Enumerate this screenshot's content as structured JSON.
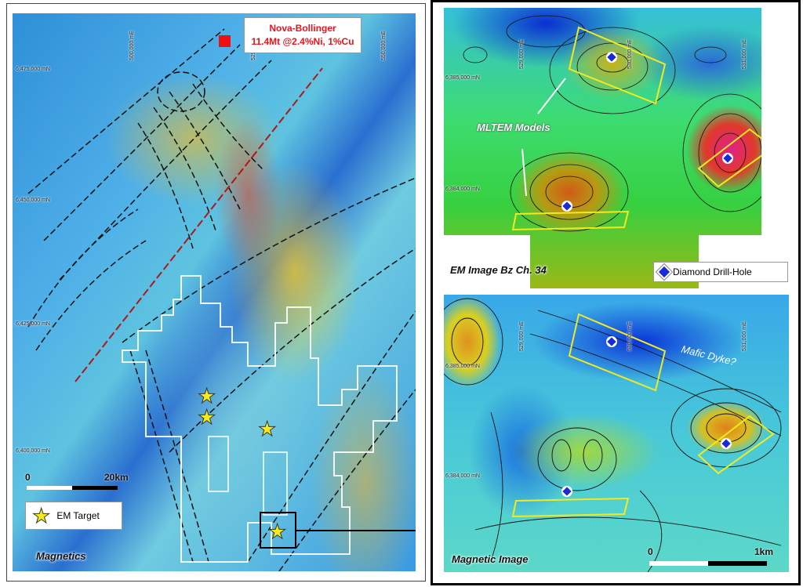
{
  "left_map": {
    "title": "Magnetics",
    "callout": {
      "line1": "Nova-Bollinger",
      "line2": "11.4Mt @2.4%Ni, 1%Cu"
    },
    "easting_labels": [
      "500,000 mE",
      "525",
      "550,000 mE"
    ],
    "northing_labels": [
      "6,475,000 mN",
      "6,450,000 mN",
      "6,425,000 mN",
      "6,400,000 mN"
    ],
    "scale": {
      "start": "0",
      "end": "20km"
    },
    "legend": {
      "icon": "star-icon",
      "label": "EM Target"
    },
    "colors": {
      "deposit": "#ee1111",
      "target_star": "#f5ec1a",
      "tenement": "#ffffff",
      "faults": "#111111",
      "major_fault": "#b01818"
    }
  },
  "em_panel": {
    "title": "EM Image Bz Ch. 34",
    "annotation": "MLTEM Models",
    "easting_labels": [
      "529,000 mE",
      "530,000 mE",
      "531,000 mE"
    ],
    "northing_labels": [
      "6,385,000 mN",
      "6,384,000 mN"
    ],
    "legend": {
      "icon": "diamond-drill-hole-icon",
      "label": "Diamond Drill-Hole"
    }
  },
  "mag_panel": {
    "title": "Magnetic Image",
    "annotation": "Mafic Dyke?",
    "easting_labels": [
      "529,000 mE",
      "530,000 mE",
      "531,000 mE"
    ],
    "northing_labels": [
      "6,385,000 mN",
      "6,384,000 mN"
    ],
    "scale": {
      "start": "0",
      "end": "1km"
    }
  }
}
